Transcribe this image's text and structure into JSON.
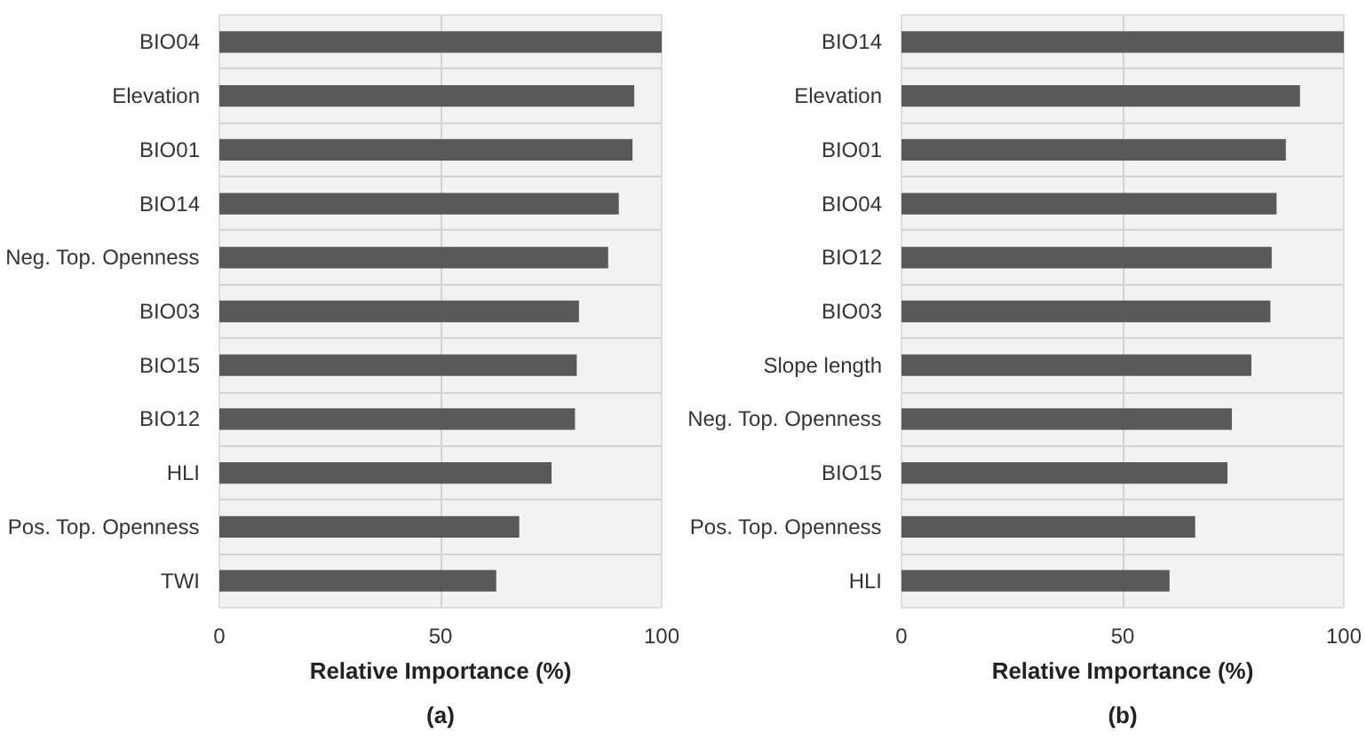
{
  "chart_data": [
    {
      "type": "bar",
      "orientation": "horizontal",
      "categories": [
        "BIO04",
        "Elevation",
        "BIO01",
        "BIO14",
        "Neg. Top. Openness",
        "BIO03",
        "BIO15",
        "BIO12",
        "HLI",
        "Pos. Top. Openness",
        "TWI"
      ],
      "values": [
        100,
        93.8,
        93.4,
        90.3,
        87.9,
        81.3,
        80.8,
        80.4,
        75.1,
        67.8,
        62.6
      ],
      "color": "#595959",
      "xlim": [
        0,
        100
      ],
      "xticks": [
        0,
        50,
        100
      ],
      "xlabel": "Relative Importance (%)",
      "annotations": [
        "(a)"
      ],
      "grid": true
    },
    {
      "type": "bar",
      "orientation": "horizontal",
      "categories": [
        "BIO14",
        "Elevation",
        "BIO01",
        "BIO04",
        "BIO12",
        "BIO03",
        "Slope length",
        "Neg. Top. Openness",
        "BIO15",
        "Pos. Top. Openness",
        "HLI"
      ],
      "values": [
        100,
        90.1,
        86.9,
        84.8,
        83.7,
        83.4,
        79.1,
        74.7,
        73.7,
        66.4,
        60.6
      ],
      "color": "#595959",
      "xlim": [
        0,
        100
      ],
      "xticks": [
        0,
        50,
        100
      ],
      "xlabel": "Relative Importance (%)",
      "annotations": [
        "(b)"
      ],
      "grid": true
    }
  ]
}
